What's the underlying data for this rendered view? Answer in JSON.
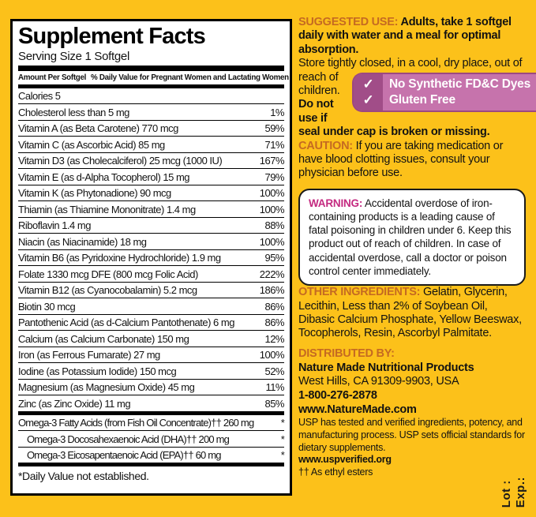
{
  "colors": {
    "background_yellow": "#FCC11A",
    "heading_orange": "#C56A22",
    "warning_magenta": "#C42A80",
    "badge_pink": "#C673AC",
    "badge_tab_plum": "#A14D88",
    "panel_white": "#FFFFFF",
    "text_black": "#121212"
  },
  "panel": {
    "title": "Supplement Facts",
    "serving_size": "Serving Size 1 Softgel",
    "col_amount": "Amount Per Softgel",
    "col_dv": "% Daily Value for Pregnant Women and Lactating Women",
    "rows": [
      {
        "label": "Calories  5",
        "value": ""
      },
      {
        "label": "Cholesterol  less than 5 mg",
        "value": "1%"
      },
      {
        "label": "Vitamin A (as Beta Carotene)  770 mcg",
        "value": "59%"
      },
      {
        "label": "Vitamin C (as Ascorbic Acid)  85 mg",
        "value": "71%"
      },
      {
        "label": "Vitamin D3 (as Cholecalciferol)  25 mcg (1000 IU)",
        "value": "167%"
      },
      {
        "label": "Vitamin E (as d-Alpha Tocopherol)  15 mg",
        "value": "79%"
      },
      {
        "label": "Vitamin K (as Phytonadione)  90 mcg",
        "value": "100%"
      },
      {
        "label": "Thiamin (as Thiamine Mononitrate)  1.4 mg",
        "value": "100%"
      },
      {
        "label": "Riboflavin  1.4 mg",
        "value": "88%"
      },
      {
        "label": "Niacin (as Niacinamide)  18 mg",
        "value": "100%"
      },
      {
        "label": "Vitamin B6 (as Pyridoxine Hydrochloride)  1.9 mg",
        "value": "95%"
      },
      {
        "label": "Folate  1330 mcg DFE (800 mcg Folic Acid)",
        "value": "222%"
      },
      {
        "label": "Vitamin B12 (as Cyanocobalamin)  5.2 mcg",
        "value": "186%"
      },
      {
        "label": "Biotin  30 mcg",
        "value": "86%"
      },
      {
        "label": "Pantothenic Acid (as d-Calcium Pantothenate)  6 mg",
        "value": "86%"
      },
      {
        "label": "Calcium (as Calcium Carbonate)  150 mg",
        "value": "12%"
      },
      {
        "label": "Iron (as Ferrous Fumarate)  27 mg",
        "value": "100%"
      },
      {
        "label": "Iodine (as Potassium Iodide)  150 mcg",
        "value": "52%"
      },
      {
        "label": "Magnesium (as Magnesium Oxide)  45 mg",
        "value": "11%"
      },
      {
        "label": "Zinc (as Zinc Oxide)  11 mg",
        "value": "85%"
      }
    ],
    "omega_rows": [
      {
        "label": "Omega-3 Fatty Acids (from Fish Oil Concentrate)††  260 mg",
        "value": "*"
      },
      {
        "label": "Omega-3 Docosahexaenoic Acid (DHA)††  200 mg",
        "value": "*",
        "indent": true
      },
      {
        "label": "Omega-3 Eicosapentaenoic Acid (EPA)††  60 mg",
        "value": "*",
        "indent": true
      }
    ],
    "footnote": "*Daily Value not established."
  },
  "right": {
    "suggested_use": {
      "heading": "SUGGESTED USE:",
      "intro": "Adults, take 1 softgel daily with water and a meal for optimal absorption.",
      "store_a": "Store tightly closed, in a cool, dry place, out of",
      "store_b": "reach of children.",
      "seal": "Do not use if seal under cap is broken or missing."
    },
    "badge": {
      "check": "✓",
      "line1": "No Synthetic FD&C Dyes",
      "line2": "Gluten Free"
    },
    "caution": {
      "heading": "CAUTION:",
      "text": "If you are taking medication or have blood clotting issues, consult your physician before use."
    },
    "warning": {
      "heading": "WARNING:",
      "text": "Accidental overdose of iron-containing products is a leading cause of fatal poisoning in children under 6. Keep this product out of reach of children. In case of accidental overdose, call a doctor or poison control center immediately."
    },
    "other_ingredients": {
      "heading": "OTHER INGREDIENTS:",
      "text": "Gelatin, Glycerin, Lecithin, Less than 2% of Soybean Oil, Dibasic Calcium Phosphate, Yellow Beeswax, Tocopherols, Resin, Ascorbyl Palmitate."
    },
    "distributed_by": {
      "heading": "DISTRIBUTED BY:",
      "name": "Nature Made Nutritional Products",
      "address": "West Hills, CA 91309-9903, USA",
      "phone": "1-800-276-2878",
      "website": "www.NatureMade.com"
    },
    "usp": {
      "text": "USP has tested and verified ingredients, potency, and manufacturing process. USP sets official standards for dietary supplements.",
      "url": "www.uspverified.org"
    },
    "ethyl_note": "†† As ethyl esters",
    "lot": "Lot :",
    "exp": "Exp.:"
  }
}
